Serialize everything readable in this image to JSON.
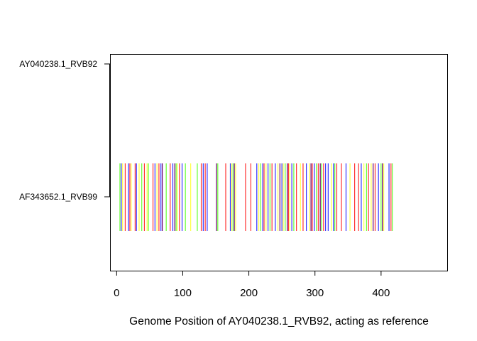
{
  "chart_data": {
    "type": "strip",
    "xlabel": "Genome Position of AY040238.1_RVB92, acting as reference",
    "ylabel": "",
    "xlim": [
      -10,
      500
    ],
    "x_ticks": [
      0,
      100,
      200,
      300,
      400
    ],
    "x_tick_labels": [
      "0",
      "100",
      "200",
      "300",
      "400"
    ],
    "grid": false,
    "legend": "none",
    "categories": [
      "AY040238.1_RVB92",
      "AF343652.1_RVB99"
    ],
    "series": [
      {
        "sequence": "AF343652.1_RVB99",
        "positions": [
          {
            "x": 5,
            "base": "A"
          },
          {
            "x": 7,
            "base": "T"
          },
          {
            "x": 9,
            "base": "G"
          },
          {
            "x": 13,
            "base": "C"
          },
          {
            "x": 18,
            "base": "T"
          },
          {
            "x": 20,
            "base": "C"
          },
          {
            "x": 22,
            "base": "G"
          },
          {
            "x": 28,
            "base": "C"
          },
          {
            "x": 30,
            "base": "T"
          },
          {
            "x": 34,
            "base": "G"
          },
          {
            "x": 38,
            "base": "A"
          },
          {
            "x": 42,
            "base": "C"
          },
          {
            "x": 46,
            "base": "G"
          },
          {
            "x": 48,
            "base": "A"
          },
          {
            "x": 55,
            "base": "C"
          },
          {
            "x": 58,
            "base": "T"
          },
          {
            "x": 61,
            "base": "G"
          },
          {
            "x": 64,
            "base": "C"
          },
          {
            "x": 67,
            "base": "T"
          },
          {
            "x": 69,
            "base": "X"
          },
          {
            "x": 75,
            "base": "A"
          },
          {
            "x": 81,
            "base": "C"
          },
          {
            "x": 85,
            "base": "T"
          },
          {
            "x": 88,
            "base": "X"
          },
          {
            "x": 90,
            "base": "A"
          },
          {
            "x": 92,
            "base": "G"
          },
          {
            "x": 95,
            "base": "C"
          },
          {
            "x": 99,
            "base": "T"
          },
          {
            "x": 104,
            "base": "A"
          },
          {
            "x": 112,
            "base": "G"
          },
          {
            "x": 122,
            "base": "A"
          },
          {
            "x": 128,
            "base": "C"
          },
          {
            "x": 131,
            "base": "T"
          },
          {
            "x": 134,
            "base": "C"
          },
          {
            "x": 137,
            "base": "T"
          },
          {
            "x": 151,
            "base": "X"
          },
          {
            "x": 153,
            "base": "A"
          },
          {
            "x": 165,
            "base": "C"
          },
          {
            "x": 172,
            "base": "T"
          },
          {
            "x": 174,
            "base": "G"
          },
          {
            "x": 176,
            "base": "A"
          },
          {
            "x": 178,
            "base": "X"
          },
          {
            "x": 180,
            "base": "G"
          },
          {
            "x": 195,
            "base": "C"
          },
          {
            "x": 203,
            "base": "C"
          },
          {
            "x": 212,
            "base": "T"
          },
          {
            "x": 215,
            "base": "G"
          },
          {
            "x": 218,
            "base": "A"
          },
          {
            "x": 221,
            "base": "T"
          },
          {
            "x": 223,
            "base": "C"
          },
          {
            "x": 226,
            "base": "G"
          },
          {
            "x": 229,
            "base": "T"
          },
          {
            "x": 232,
            "base": "A"
          },
          {
            "x": 235,
            "base": "C"
          },
          {
            "x": 240,
            "base": "T"
          },
          {
            "x": 244,
            "base": "G"
          },
          {
            "x": 247,
            "base": "X"
          },
          {
            "x": 250,
            "base": "T"
          },
          {
            "x": 252,
            "base": "G"
          },
          {
            "x": 255,
            "base": "A"
          },
          {
            "x": 258,
            "base": "X"
          },
          {
            "x": 260,
            "base": "C"
          },
          {
            "x": 262,
            "base": "G"
          },
          {
            "x": 265,
            "base": "T"
          },
          {
            "x": 268,
            "base": "A"
          },
          {
            "x": 272,
            "base": "C"
          },
          {
            "x": 278,
            "base": "G"
          },
          {
            "x": 282,
            "base": "C"
          },
          {
            "x": 287,
            "base": "T"
          },
          {
            "x": 292,
            "base": "G"
          },
          {
            "x": 294,
            "base": "X"
          },
          {
            "x": 296,
            "base": "C"
          },
          {
            "x": 299,
            "base": "T"
          },
          {
            "x": 302,
            "base": "A"
          },
          {
            "x": 305,
            "base": "C"
          },
          {
            "x": 308,
            "base": "X"
          },
          {
            "x": 310,
            "base": "A"
          },
          {
            "x": 313,
            "base": "C"
          },
          {
            "x": 316,
            "base": "T"
          },
          {
            "x": 320,
            "base": "T"
          },
          {
            "x": 325,
            "base": "G"
          },
          {
            "x": 328,
            "base": "T"
          },
          {
            "x": 330,
            "base": "A"
          },
          {
            "x": 333,
            "base": "C"
          },
          {
            "x": 340,
            "base": "C"
          },
          {
            "x": 347,
            "base": "T"
          },
          {
            "x": 353,
            "base": "G"
          },
          {
            "x": 360,
            "base": "C"
          },
          {
            "x": 366,
            "base": "C"
          },
          {
            "x": 370,
            "base": "T"
          },
          {
            "x": 374,
            "base": "G"
          },
          {
            "x": 378,
            "base": "A"
          },
          {
            "x": 381,
            "base": "C"
          },
          {
            "x": 385,
            "base": "G"
          },
          {
            "x": 388,
            "base": "X"
          },
          {
            "x": 391,
            "base": "C"
          },
          {
            "x": 396,
            "base": "T"
          },
          {
            "x": 400,
            "base": "A"
          },
          {
            "x": 402,
            "base": "X"
          },
          {
            "x": 404,
            "base": "G"
          },
          {
            "x": 412,
            "base": "T"
          },
          {
            "x": 415,
            "base": "C"
          },
          {
            "x": 417,
            "base": "A"
          }
        ]
      }
    ],
    "base_colors": {
      "A": "#66ff33",
      "C": "#ff3333",
      "G": "#ffff44",
      "T": "#3333ff",
      "X": "#6a006a"
    }
  }
}
